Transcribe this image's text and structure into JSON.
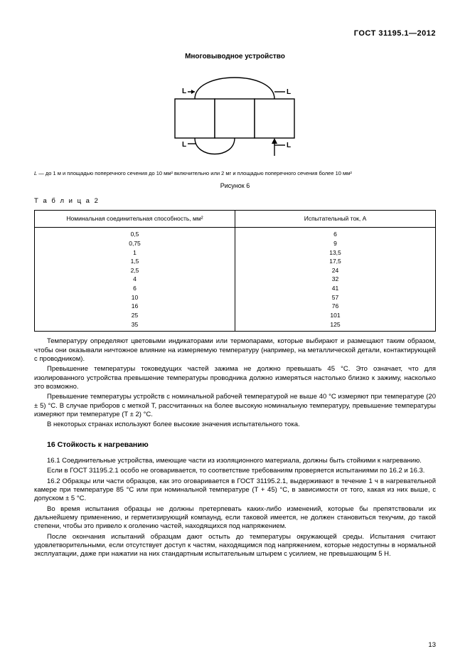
{
  "header": "ГОСТ 31195.1—2012",
  "figure": {
    "title": "Многовыводное устройство",
    "L": "L",
    "caption_prefix": "L",
    "caption": " — до 1 м и площадью поперечного сечения до 10 мм² включительно или 2 мг и площадью поперечного сечения более 10 мм²",
    "label": "Рисунок 6",
    "svg": {
      "box_stroke": "#000000",
      "box_fill": "#ffffff",
      "line_width": 1.4
    }
  },
  "table": {
    "label": "Т а б л и ц а  2",
    "col1": "Номинальная соединительная способность, мм²",
    "col2": "Испытательный ток, А",
    "rows": [
      [
        "0,5",
        "6"
      ],
      [
        "0,75",
        "9"
      ],
      [
        "1",
        "13,5"
      ],
      [
        "1,5",
        "17,5"
      ],
      [
        "2,5",
        "24"
      ],
      [
        "4",
        "32"
      ],
      [
        "6",
        "41"
      ],
      [
        "10",
        "57"
      ],
      [
        "16",
        "76"
      ],
      [
        "25",
        "101"
      ],
      [
        "35",
        "125"
      ]
    ]
  },
  "para1": "Температуру определяют цветовыми индикаторами или термопарами, которые выбирают и размещают таким образом, чтобы они оказывали ничтожное влияние на измеряемую температуру (например, на металлической детали, контактирующей с проводником).",
  "para2": "Превышение температуры токоведущих частей зажима не должно превышать 45 °C. Это означает, что для изолированного устройства превышение температуры проводника должно измеряться настолько близко к зажиму, насколько это возможно.",
  "para3": "Превышение температуры устройств с номинальной рабочей температурой не выше 40 °C измеряют при температуре (20 ± 5) °C. В случае приборов с меткой T, рассчитанных на более высокую номинальную температуру, превышение температуры измеряют при температуре (T ± 2) °C.",
  "para4": "В некоторых странах используют более высокие значения испытательного тока.",
  "section16": "16  Стойкость к нагреванию",
  "para5": "16.1 Соединительные устройства, имеющие части из изоляционного материала, должны быть стойкими к нагреванию.",
  "para6": "Если в ГОСТ 31195.2.1 особо не оговаривается, то соответствие требованиям проверяется испытаниями по 16.2 и 16.3.",
  "para7": "16.2 Образцы или части образцов, как это оговаривается в ГОСТ 31195.2.1, выдерживают в течение 1 ч в нагревательной камере при температуре 85 °C или при номинальной температуре (T + 45) °C, в зависимости от того, какая из них выше, с допуском ± 5 °C.",
  "para8": "Во время испытания образцы не должны претерпевать каких-либо изменений, которые бы препятствовали их дальнейшему применению, и герметизирующий компаунд, если таковой имеется, не должен становиться текучим, до такой степени, чтобы это привело к оголению частей, находящихся под напряжением.",
  "para9": "После окончания испытаний образцам дают остыть до температуры окружающей среды. Испытания считают удовлетворительными, если отсутствует доступ к частям, находящимся под напряжением, которые недоступны в нормальной эксплуатации, даже при нажатии на них стандартным испытательным штырем с усилием, не превышающим 5 H.",
  "pageNum": "13"
}
